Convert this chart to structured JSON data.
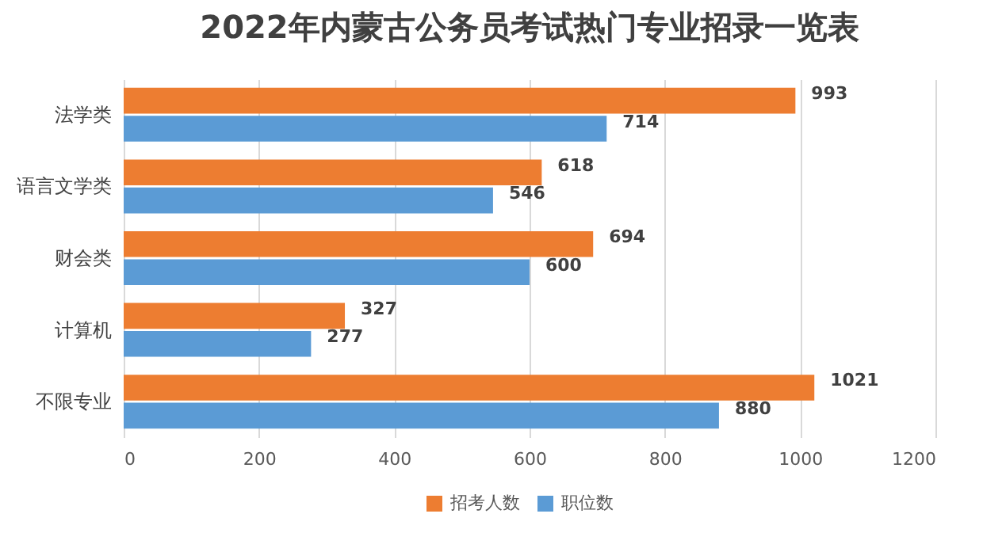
{
  "chart_data": {
    "type": "bar",
    "orientation": "horizontal",
    "title": "2022年内蒙古公务员考试热门专业招录一览表",
    "categories": [
      "法学类",
      "语言文学类",
      "财会类",
      "计算机",
      "不限专业"
    ],
    "series": [
      {
        "name": "招考人数",
        "color": "#ed7d31",
        "values": [
          993,
          618,
          694,
          327,
          1021
        ]
      },
      {
        "name": "职位数",
        "color": "#5b9bd5",
        "values": [
          714,
          546,
          600,
          277,
          880
        ]
      }
    ],
    "xlim": [
      0,
      1200
    ],
    "xticks": [
      0,
      200,
      400,
      600,
      800,
      1000,
      1200
    ],
    "grid": "x",
    "legend": "bottom",
    "data_labels": true
  }
}
